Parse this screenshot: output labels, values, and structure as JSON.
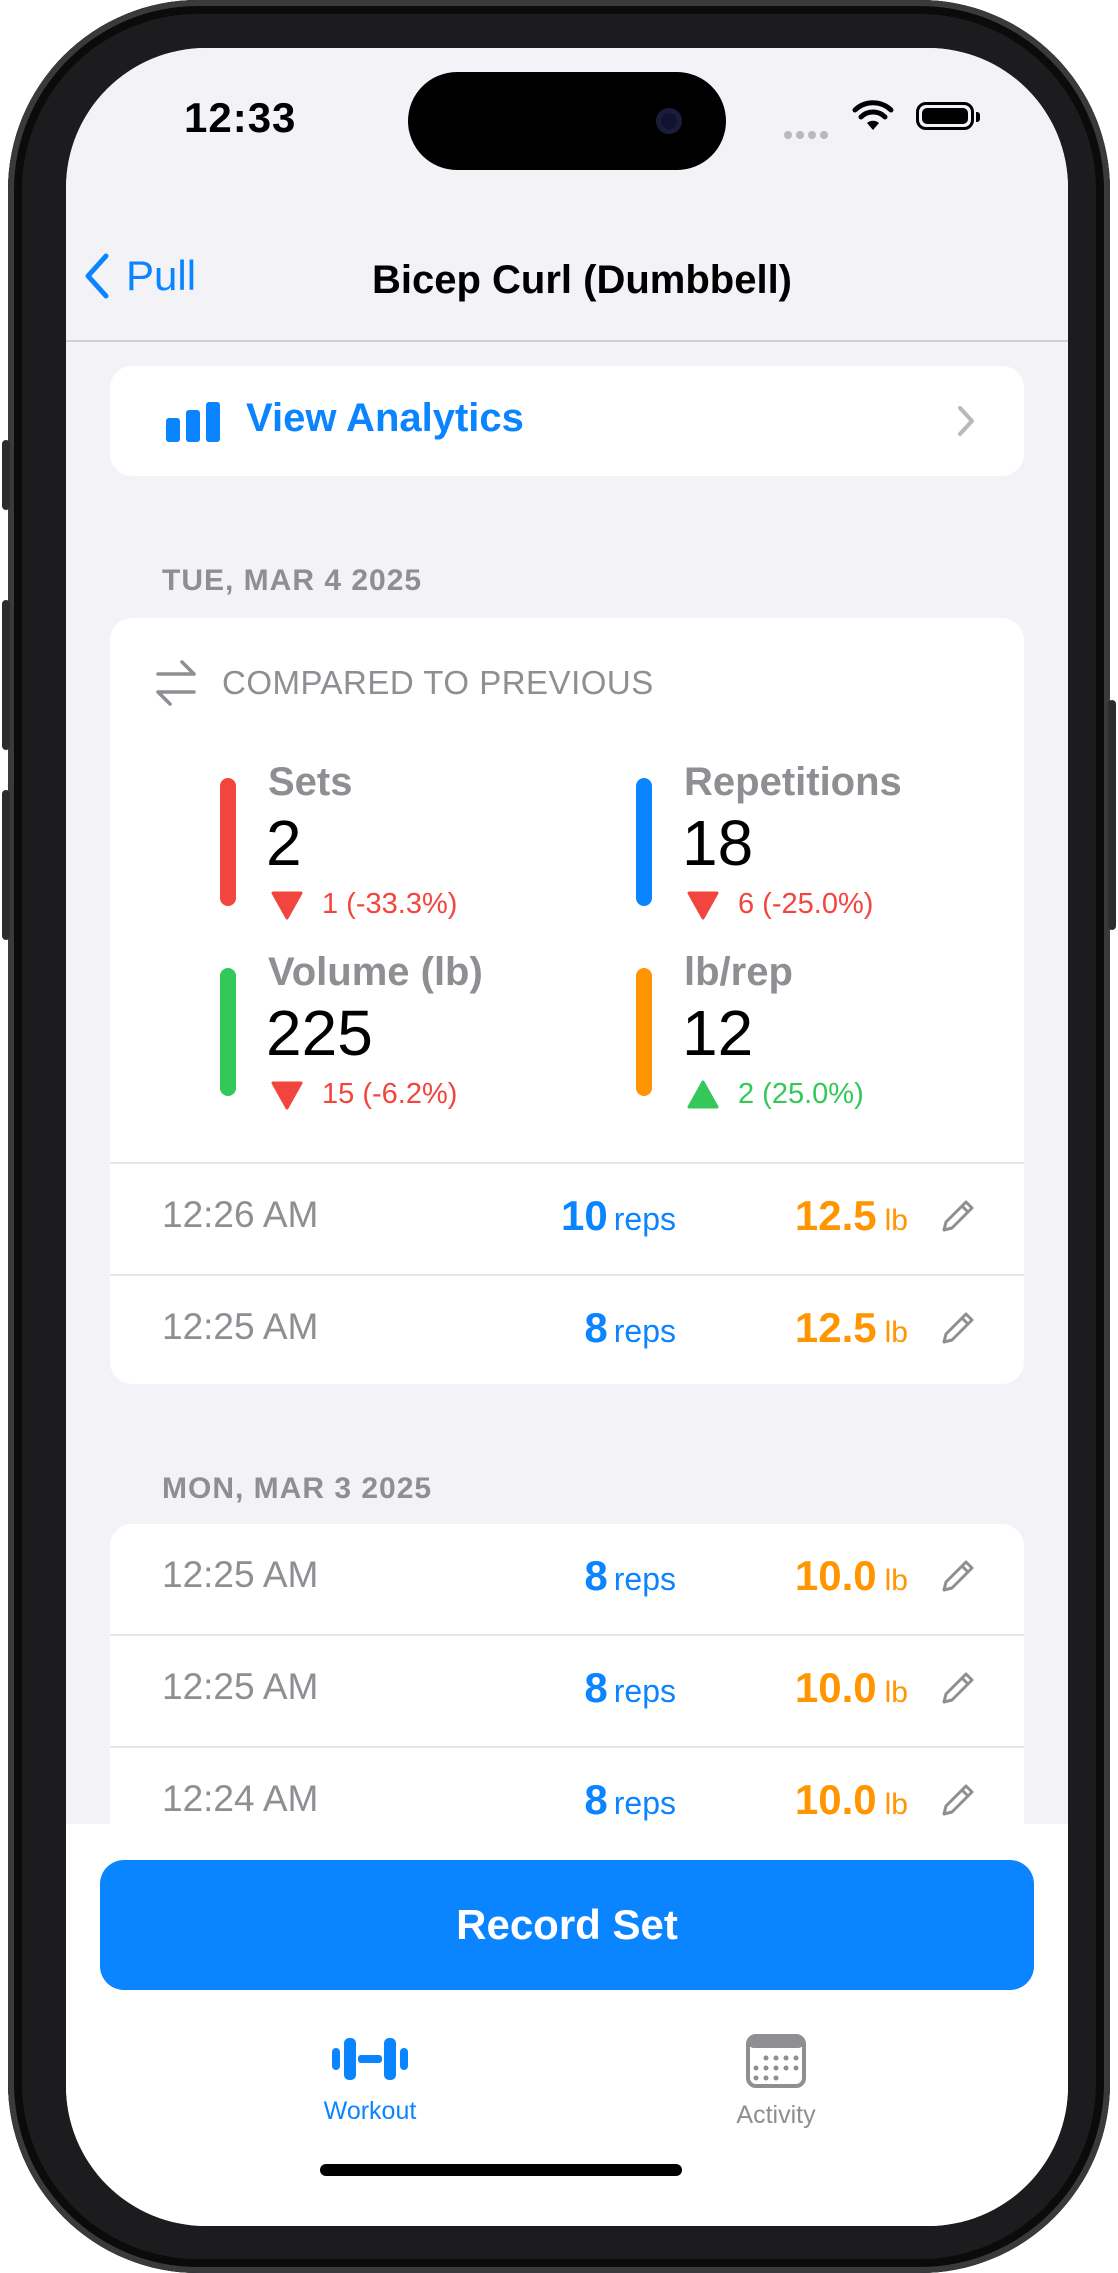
{
  "status_bar": {
    "time": "12:33"
  },
  "nav": {
    "back_label": "Pull",
    "title": "Bicep Curl (Dumbbell)"
  },
  "analytics": {
    "label": "View Analytics"
  },
  "sessions": [
    {
      "date": "TUE, MAR 4 2025",
      "comparison": {
        "header": "COMPARED TO PREVIOUS",
        "stats": [
          {
            "name": "Sets",
            "value": "2",
            "delta": "1 (-33.3%)",
            "direction": "down",
            "bar_color": "#f2453d"
          },
          {
            "name": "Repetitions",
            "value": "18",
            "delta": "6 (-25.0%)",
            "direction": "down",
            "bar_color": "#0a84ff"
          },
          {
            "name": "Volume (lb)",
            "value": "225",
            "delta": "15 (-6.2%)",
            "direction": "down",
            "bar_color": "#34c759"
          },
          {
            "name": "lb/rep",
            "value": "12",
            "delta": "2 (25.0%)",
            "direction": "up",
            "bar_color": "#ff9500"
          }
        ]
      },
      "sets": [
        {
          "time": "12:26 AM",
          "reps": "10",
          "reps_unit": "reps",
          "weight": "12.5",
          "weight_unit": "lb"
        },
        {
          "time": "12:25 AM",
          "reps": "8",
          "reps_unit": "reps",
          "weight": "12.5",
          "weight_unit": "lb"
        }
      ]
    },
    {
      "date": "MON, MAR 3 2025",
      "sets": [
        {
          "time": "12:25 AM",
          "reps": "8",
          "reps_unit": "reps",
          "weight": "10.0",
          "weight_unit": "lb"
        },
        {
          "time": "12:25 AM",
          "reps": "8",
          "reps_unit": "reps",
          "weight": "10.0",
          "weight_unit": "lb"
        },
        {
          "time": "12:24 AM",
          "reps": "8",
          "reps_unit": "reps",
          "weight": "10.0",
          "weight_unit": "lb"
        }
      ]
    }
  ],
  "record_button": {
    "label": "Record Set"
  },
  "tabs": [
    {
      "label": "Workout",
      "icon": "dumbbell-icon",
      "active": true
    },
    {
      "label": "Activity",
      "icon": "calendar-icon",
      "active": false
    }
  ],
  "colors": {
    "accent": "#0a84ff",
    "weight": "#ff9500",
    "down": "#f2453d",
    "up": "#34c759",
    "muted": "#8e8e93"
  }
}
